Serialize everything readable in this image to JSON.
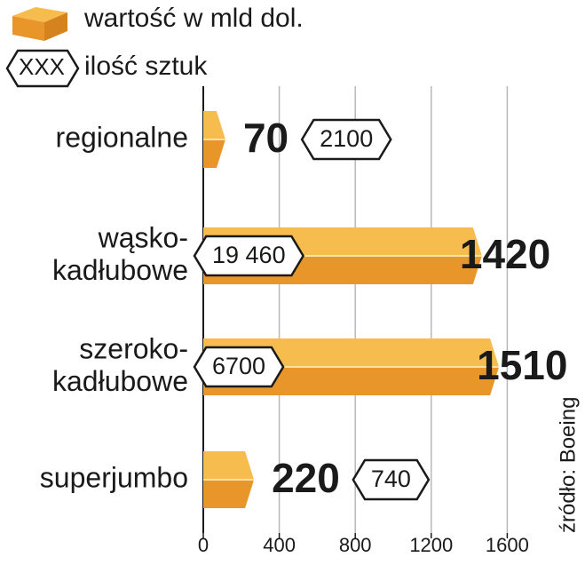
{
  "chart_data": {
    "type": "bar",
    "orientation": "horizontal",
    "categories": [
      "regionalne",
      "wąsko-kadłubowe",
      "szeroko-kadłubowe",
      "superjumbo"
    ],
    "series": [
      {
        "name": "wartość w mld dol.",
        "color": "#f0a535",
        "values": [
          70,
          1420,
          1510,
          220
        ]
      },
      {
        "name": "ilość sztuk",
        "color": "#ffffff",
        "values": [
          2100,
          19460,
          6700,
          740
        ],
        "value_labels": [
          "2100",
          "19 460",
          "6700",
          "740"
        ],
        "legend_marker_label": "XXX"
      }
    ],
    "xlim": [
      0,
      2000
    ],
    "xticks": [
      0,
      400,
      800,
      1200,
      1600
    ],
    "grid": true,
    "source": "źródło: Boeing"
  }
}
